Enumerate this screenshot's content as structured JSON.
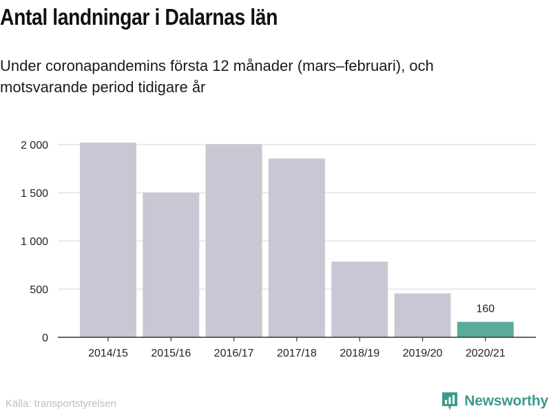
{
  "header": {
    "title": "Antal landningar i Dalarnas län",
    "subtitle": "Under coronapandemins första 12 månader (mars–februari), och motsvarande period tidigare år"
  },
  "footer": {
    "source": "Källa: transportstyrelsen",
    "brand": "Newsworthy",
    "brand_icon": "bar-chart-badge-icon"
  },
  "colors": {
    "bar_default": "#c9c7d3",
    "bar_highlight": "#5aab9c",
    "gridline": "#dddddd",
    "axis": "#333333",
    "brand": "#3d9a8b"
  },
  "chart_data": {
    "type": "bar",
    "title": "Antal landningar i Dalarnas län",
    "subtitle": "Under coronapandemins första 12 månader (mars–februari), och motsvarande period tidigare år",
    "xlabel": "",
    "ylabel": "",
    "categories": [
      "2014/15",
      "2015/16",
      "2016/17",
      "2017/18",
      "2018/19",
      "2019/20",
      "2020/21"
    ],
    "values": [
      2020,
      1500,
      2005,
      1855,
      785,
      455,
      160
    ],
    "highlight_index": 6,
    "data_labels": [
      null,
      null,
      null,
      null,
      null,
      null,
      "160"
    ],
    "ylim": [
      0,
      2000
    ],
    "yticks": [
      0,
      500,
      1000,
      1500,
      2000
    ],
    "ytick_labels": [
      "0",
      "500",
      "1 000",
      "1 500",
      "2 000"
    ],
    "grid": true,
    "legend": "none"
  }
}
